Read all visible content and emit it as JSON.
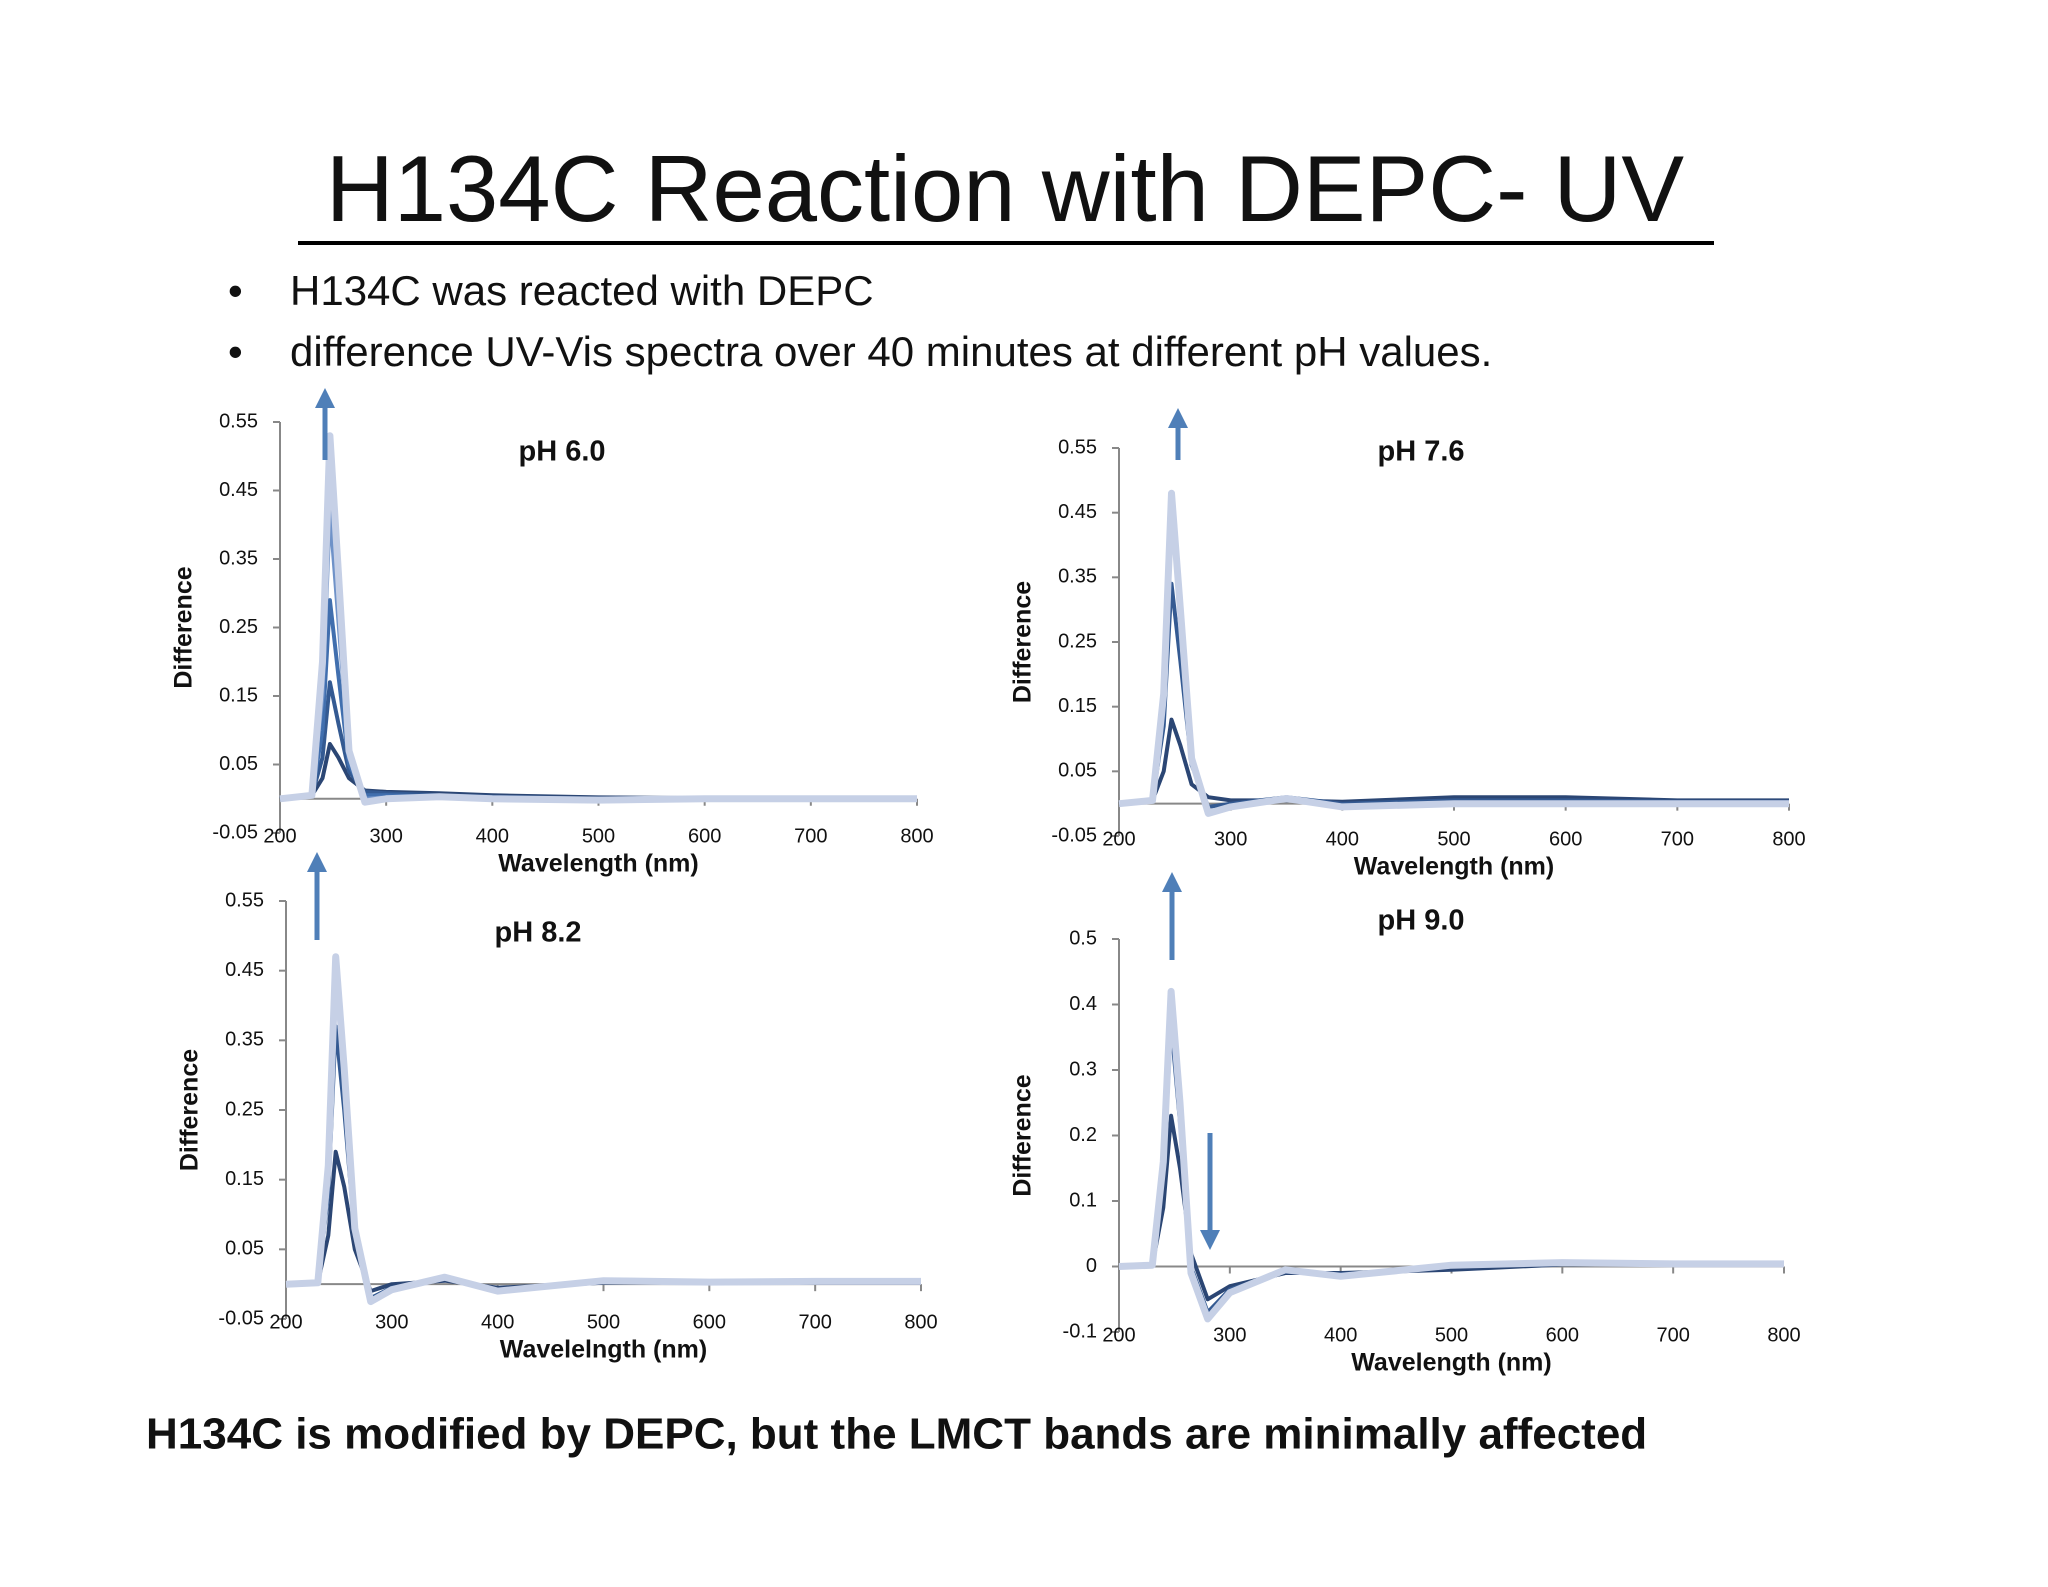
{
  "title": "H134C Reaction with DEPC- UV",
  "bullets": [
    "H134C  was reacted with DEPC",
    "difference UV-Vis spectra over 40 minutes at different pH values."
  ],
  "conclusion": "H134C is modified by DEPC, but the LMCT bands are minimally affected",
  "chart_data": [
    {
      "type": "line",
      "title": "pH 6.0",
      "x_label": "Wavelength (nm)",
      "y_label": "Difference",
      "xlim": [
        200,
        800
      ],
      "xticks": [
        200,
        300,
        400,
        500,
        600,
        700,
        800
      ],
      "ylim": [
        -0.05,
        0.55
      ],
      "yticks": [
        -0.05,
        0.05,
        0.15,
        0.25,
        0.35,
        0.45,
        0.55
      ],
      "x": [
        200,
        230,
        240,
        247,
        255,
        265,
        280,
        300,
        350,
        400,
        500,
        600,
        700,
        800
      ],
      "series": [
        {
          "color": "#2b4674",
          "values": [
            0,
            0.005,
            0.03,
            0.08,
            0.06,
            0.03,
            0.012,
            0.01,
            0.008,
            0.005,
            0.002,
            0.001,
            0.001,
            0.001
          ]
        },
        {
          "color": "#345a92",
          "values": [
            0,
            0.005,
            0.06,
            0.17,
            0.11,
            0.04,
            0.01,
            0.008,
            0.005,
            0.003,
            0,
            0,
            0,
            0
          ]
        },
        {
          "color": "#416fae",
          "values": [
            0,
            0.005,
            0.1,
            0.29,
            0.18,
            0.05,
            0.005,
            0.005,
            0.003,
            0.002,
            0,
            0,
            0,
            0
          ]
        },
        {
          "color": "#6f92c8",
          "values": [
            0,
            0.005,
            0.15,
            0.42,
            0.26,
            0.06,
            0,
            0.002,
            0.002,
            0.001,
            0,
            0,
            0,
            0
          ]
        },
        {
          "color": "#c6d0e6",
          "values": [
            0,
            0.005,
            0.2,
            0.53,
            0.33,
            0.07,
            -0.005,
            0,
            0.003,
            0,
            -0.002,
            0,
            0,
            0
          ]
        }
      ]
    },
    {
      "type": "line",
      "title": "pH 7.6",
      "x_label": "Wavelength (nm)",
      "y_label": "Difference",
      "xlim": [
        200,
        800
      ],
      "xticks": [
        200,
        300,
        400,
        500,
        600,
        700,
        800
      ],
      "ylim": [
        -0.05,
        0.55
      ],
      "yticks": [
        -0.05,
        0.05,
        0.15,
        0.25,
        0.35,
        0.45,
        0.55
      ],
      "x": [
        200,
        230,
        240,
        247,
        255,
        265,
        280,
        300,
        350,
        400,
        500,
        600,
        700,
        800
      ],
      "series": [
        {
          "color": "#2b4674",
          "values": [
            0,
            0.005,
            0.05,
            0.13,
            0.09,
            0.03,
            0.01,
            0.005,
            0.005,
            0.003,
            0.01,
            0.01,
            0.005,
            0.005
          ]
        },
        {
          "color": "#345a92",
          "values": [
            0,
            0.005,
            0.12,
            0.34,
            0.22,
            0.06,
            -0.005,
            0,
            0.01,
            0,
            0.005,
            0.005,
            0.003,
            0.003
          ]
        },
        {
          "color": "#c6d0e6",
          "values": [
            0,
            0.005,
            0.17,
            0.48,
            0.3,
            0.07,
            -0.015,
            -0.005,
            0.008,
            -0.005,
            0,
            0,
            0,
            0
          ]
        }
      ]
    },
    {
      "type": "line",
      "title": "pH 8.2",
      "x_label": "Wavelelngth (nm)",
      "y_label": "Difference",
      "xlim": [
        200,
        800
      ],
      "xticks": [
        200,
        300,
        400,
        500,
        600,
        700,
        800
      ],
      "ylim": [
        -0.05,
        0.55
      ],
      "yticks": [
        -0.05,
        0.05,
        0.15,
        0.25,
        0.35,
        0.45,
        0.55
      ],
      "x": [
        200,
        230,
        240,
        247,
        255,
        265,
        280,
        300,
        350,
        400,
        500,
        600,
        700,
        800
      ],
      "series": [
        {
          "color": "#2b4674",
          "values": [
            0,
            0.002,
            0.07,
            0.19,
            0.14,
            0.05,
            -0.01,
            0,
            0.005,
            -0.005,
            0.002,
            0.003,
            0.002,
            0.002
          ]
        },
        {
          "color": "#345a92",
          "values": [
            0,
            0.002,
            0.13,
            0.37,
            0.25,
            0.07,
            -0.02,
            -0.005,
            0.008,
            -0.008,
            0.003,
            0.002,
            0.003,
            0.003
          ]
        },
        {
          "color": "#c6d0e6",
          "values": [
            0,
            0.002,
            0.17,
            0.47,
            0.31,
            0.08,
            -0.025,
            -0.008,
            0.01,
            -0.01,
            0.005,
            0.003,
            0.004,
            0.004
          ]
        }
      ]
    },
    {
      "type": "line",
      "title": "pH 9.0",
      "x_label": "Wavelength (nm)",
      "y_label": "Difference",
      "xlim": [
        200,
        800
      ],
      "xticks": [
        200,
        300,
        400,
        500,
        600,
        700,
        800
      ],
      "ylim": [
        -0.1,
        0.5
      ],
      "yticks": [
        -0.1,
        0,
        0.1,
        0.2,
        0.3,
        0.4,
        0.5
      ],
      "x": [
        200,
        230,
        240,
        247,
        255,
        265,
        280,
        300,
        350,
        400,
        500,
        600,
        700,
        800
      ],
      "series": [
        {
          "color": "#2b4674",
          "values": [
            0,
            0.002,
            0.09,
            0.23,
            0.15,
            0.02,
            -0.05,
            -0.03,
            -0.01,
            -0.01,
            -0.005,
            0.003,
            0.003,
            0.003
          ]
        },
        {
          "color": "#345a92",
          "values": [
            0,
            0.002,
            0.14,
            0.37,
            0.22,
            0,
            -0.07,
            -0.035,
            -0.008,
            -0.012,
            0,
            0.005,
            0.003,
            0.003
          ]
        },
        {
          "color": "#c6d0e6",
          "values": [
            0,
            0.002,
            0.16,
            0.42,
            0.25,
            -0.01,
            -0.08,
            -0.04,
            -0.005,
            -0.015,
            0.002,
            0.006,
            0.004,
            0.004
          ]
        }
      ]
    }
  ]
}
